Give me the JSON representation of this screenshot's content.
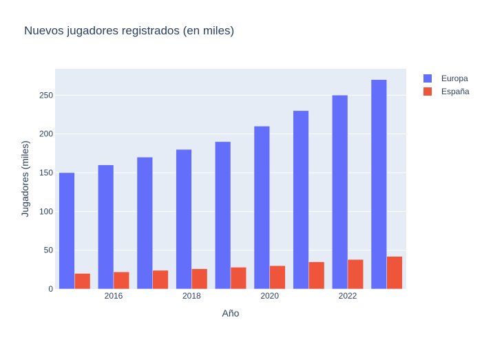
{
  "chart_data": {
    "type": "bar",
    "title": "Nuevos jugadores registrados (en miles)",
    "xlabel": "Año",
    "ylabel": "Jugadores (miles)",
    "x": [
      2015,
      2016,
      2017,
      2018,
      2019,
      2020,
      2021,
      2022,
      2023
    ],
    "x_tick_labels": [
      "2016",
      "2018",
      "2020",
      "2022"
    ],
    "x_tick_values": [
      2016,
      2018,
      2020,
      2022
    ],
    "xlim": [
      2014.5,
      2023.5
    ],
    "ylim": [
      0,
      284
    ],
    "y_tick_values": [
      0,
      50,
      100,
      150,
      200,
      250
    ],
    "y_tick_labels": [
      "0",
      "50",
      "100",
      "150",
      "200",
      "250"
    ],
    "grid": true,
    "legend_position": "top-right",
    "series": [
      {
        "name": "Europa",
        "color": "#636efa",
        "values": [
          150,
          160,
          170,
          180,
          190,
          210,
          230,
          250,
          270
        ]
      },
      {
        "name": "España",
        "color": "#ef553b",
        "values": [
          20,
          22,
          24,
          26,
          28,
          30,
          35,
          38,
          42
        ]
      }
    ],
    "plot_background": "#e5ecf6"
  }
}
